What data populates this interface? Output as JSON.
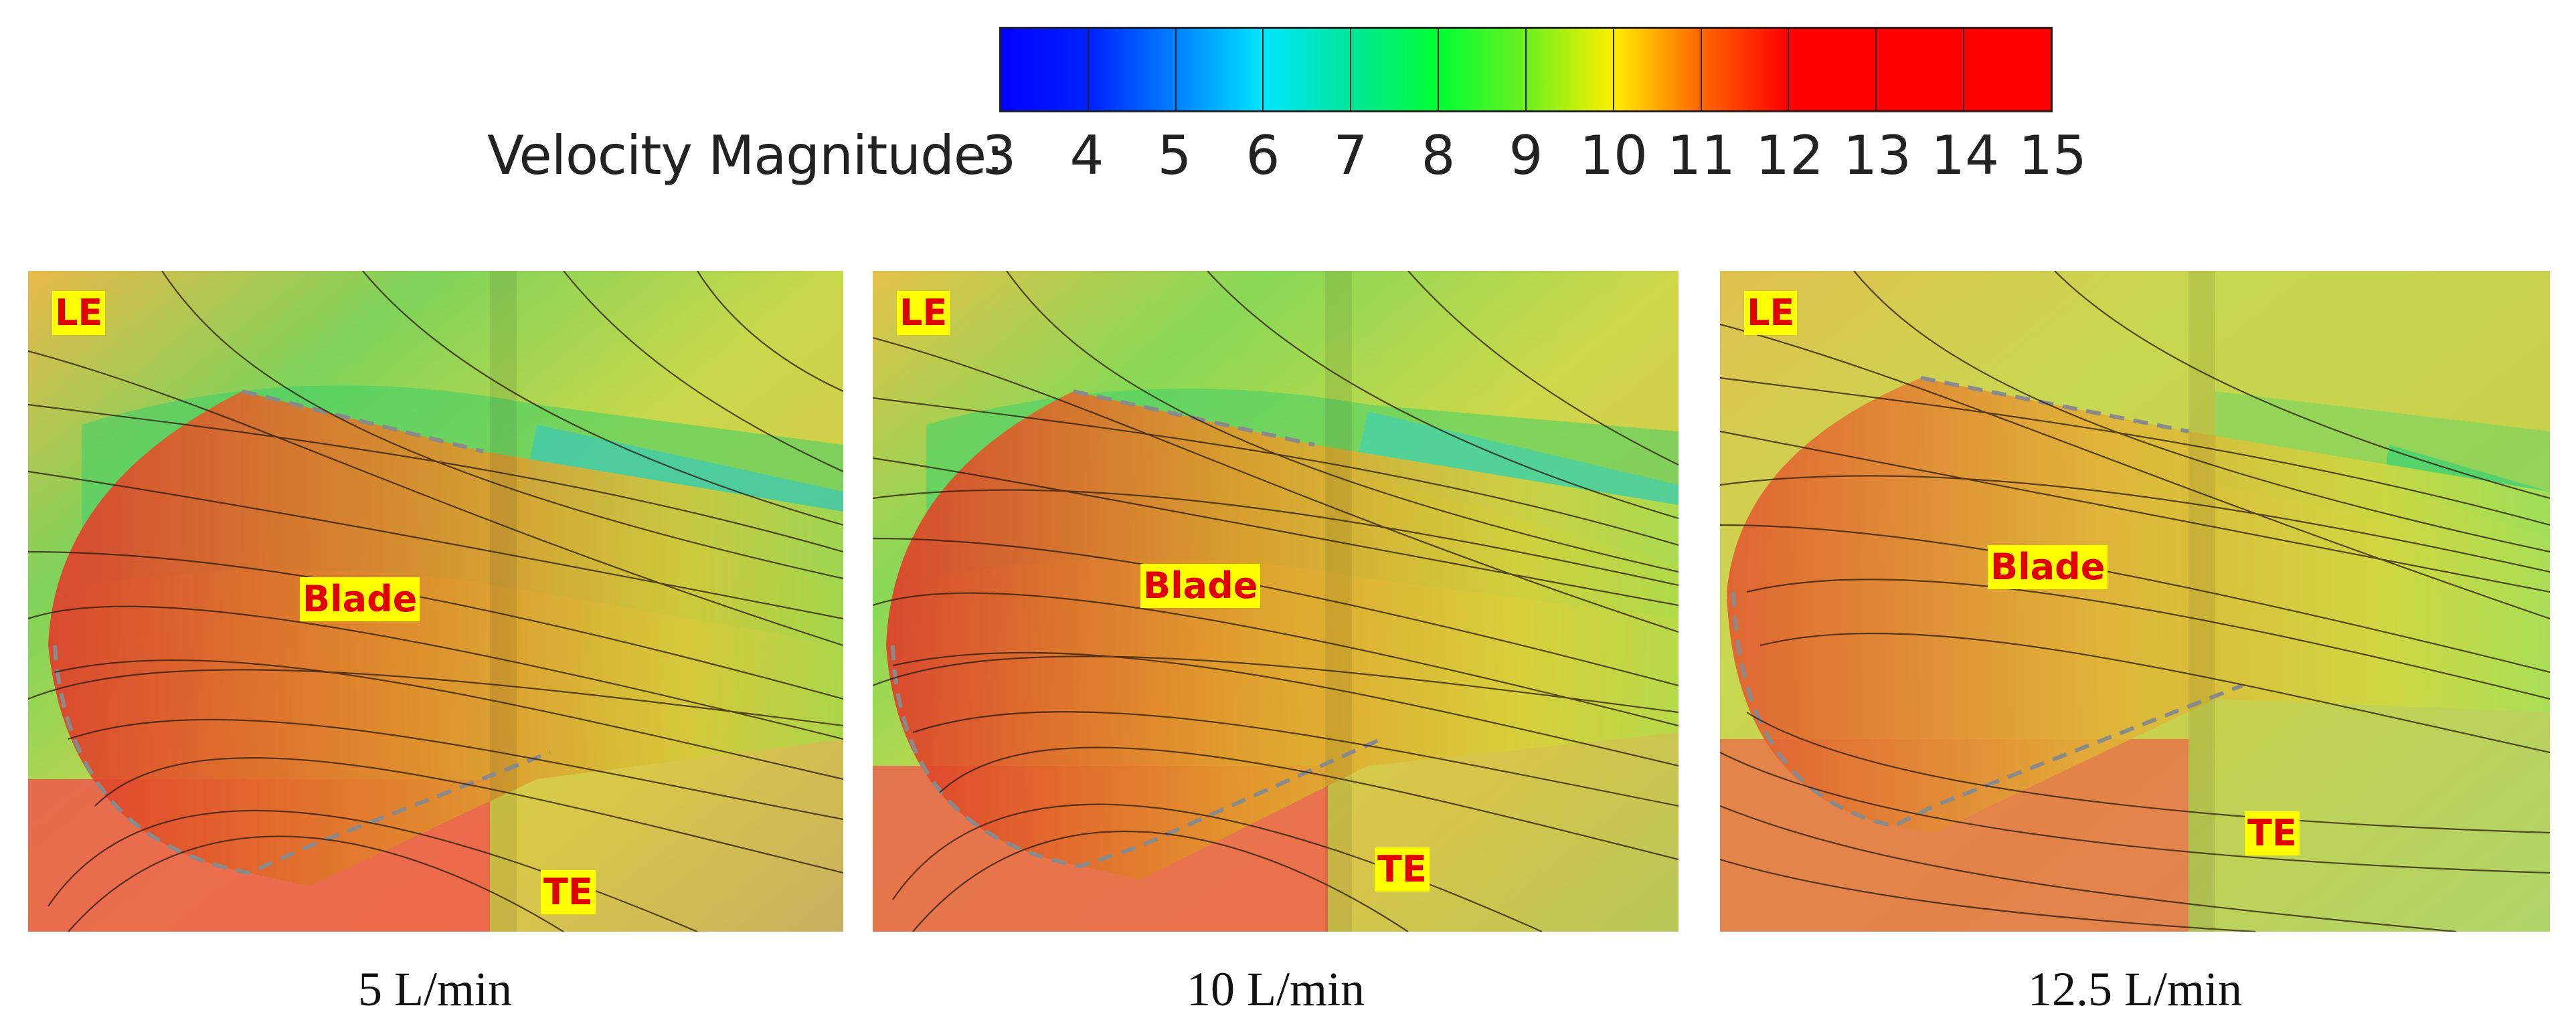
{
  "legend": {
    "title": "Velocity Magnitude:",
    "ticks": [
      "3",
      "4",
      "5",
      "6",
      "7",
      "8",
      "9",
      "10",
      "11",
      "12",
      "13",
      "14",
      "15"
    ],
    "gradient_colors": [
      "#0000ff",
      "#0022ff",
      "#0080ff",
      "#00e6ff",
      "#00e69a",
      "#00ff33",
      "#6cf020",
      "#ffee00",
      "#ff6600",
      "#ff0000",
      "#ff0000",
      "#ff0000"
    ]
  },
  "panels": [
    {
      "flow_label": "5 L/min",
      "leading_edge": "LE",
      "blade": "Blade",
      "trailing_edge": "TE"
    },
    {
      "flow_label": "10 L/min",
      "leading_edge": "LE",
      "blade": "Blade",
      "trailing_edge": "TE"
    },
    {
      "flow_label": "12.5 L/min",
      "leading_edge": "LE",
      "blade": "Blade",
      "trailing_edge": "TE"
    }
  ],
  "colors": {
    "label_bg": "#ffff00",
    "label_text": "#e00000",
    "streamline": "#2a1a10"
  }
}
